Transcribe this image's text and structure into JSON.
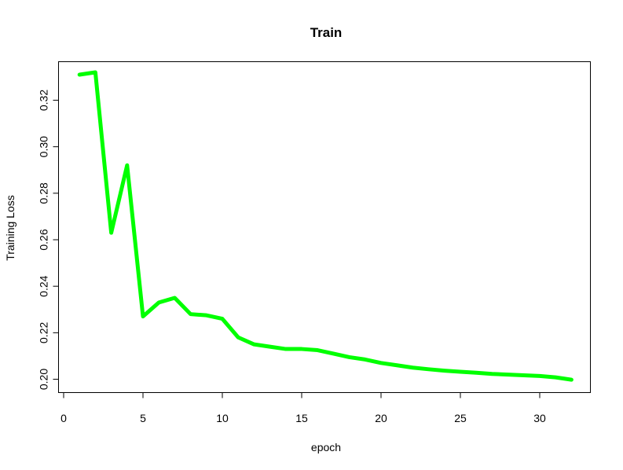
{
  "chart_data": {
    "type": "line",
    "title": "Train",
    "xlabel": "epoch",
    "ylabel": "Training Loss",
    "xlim": [
      0,
      32
    ],
    "ylim": [
      0.1995,
      0.332
    ],
    "x_ticks": [
      0,
      5,
      10,
      15,
      20,
      25,
      30
    ],
    "y_ticks": [
      0.2,
      0.22,
      0.24,
      0.26,
      0.28,
      0.3,
      0.32
    ],
    "x_tick_labels": [
      "0",
      "5",
      "10",
      "15",
      "20",
      "25",
      "30"
    ],
    "y_tick_labels": [
      "0.20",
      "0.22",
      "0.24",
      "0.26",
      "0.28",
      "0.30",
      "0.32"
    ],
    "grid": false,
    "legend": "none",
    "line_color": "#00ff00",
    "x": [
      1,
      2,
      3,
      4,
      5,
      6,
      7,
      8,
      9,
      10,
      11,
      12,
      13,
      14,
      15,
      16,
      17,
      18,
      19,
      20,
      21,
      22,
      23,
      24,
      25,
      26,
      27,
      28,
      29,
      30,
      31,
      32
    ],
    "series": [
      {
        "values": [
          0.331,
          0.332,
          0.263,
          0.292,
          0.227,
          0.233,
          0.235,
          0.228,
          0.2275,
          0.226,
          0.218,
          0.215,
          0.214,
          0.213,
          0.213,
          0.2125,
          0.211,
          0.2095,
          0.2085,
          0.207,
          0.206,
          0.205,
          0.2043,
          0.2037,
          0.2032,
          0.2028,
          0.2023,
          0.202,
          0.2017,
          0.2014,
          0.2008,
          0.1998
        ]
      }
    ]
  }
}
